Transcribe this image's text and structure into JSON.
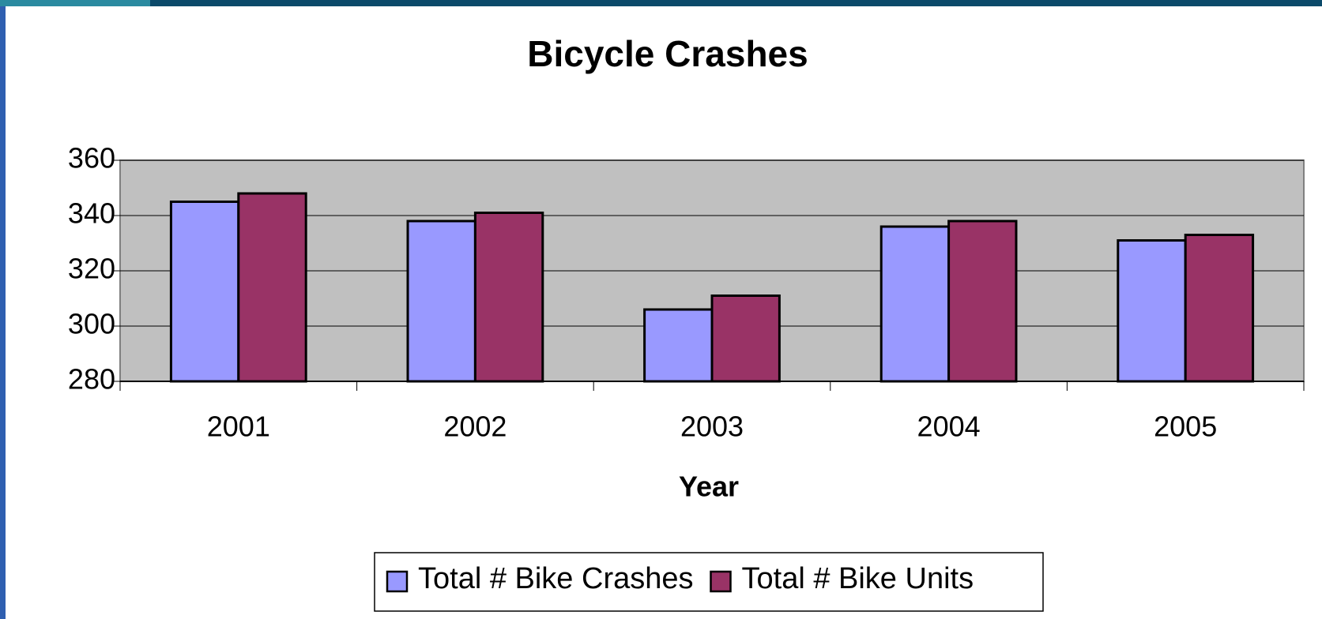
{
  "chart_data": {
    "type": "bar",
    "title": "Bicycle Crashes",
    "x_label": "Year",
    "categories": [
      "2001",
      "2002",
      "2003",
      "2004",
      "2005"
    ],
    "series": [
      {
        "name": "Total # Bike Crashes",
        "color": "#9999ff",
        "values": [
          345,
          338,
          306,
          336,
          331
        ]
      },
      {
        "name": "Total # Bike Units",
        "color": "#993366",
        "values": [
          348,
          341,
          311,
          338,
          333
        ]
      }
    ],
    "ylim": [
      280,
      360
    ],
    "yticks": [
      280,
      300,
      320,
      340,
      360
    ],
    "grid": true,
    "legend": "bottom"
  }
}
